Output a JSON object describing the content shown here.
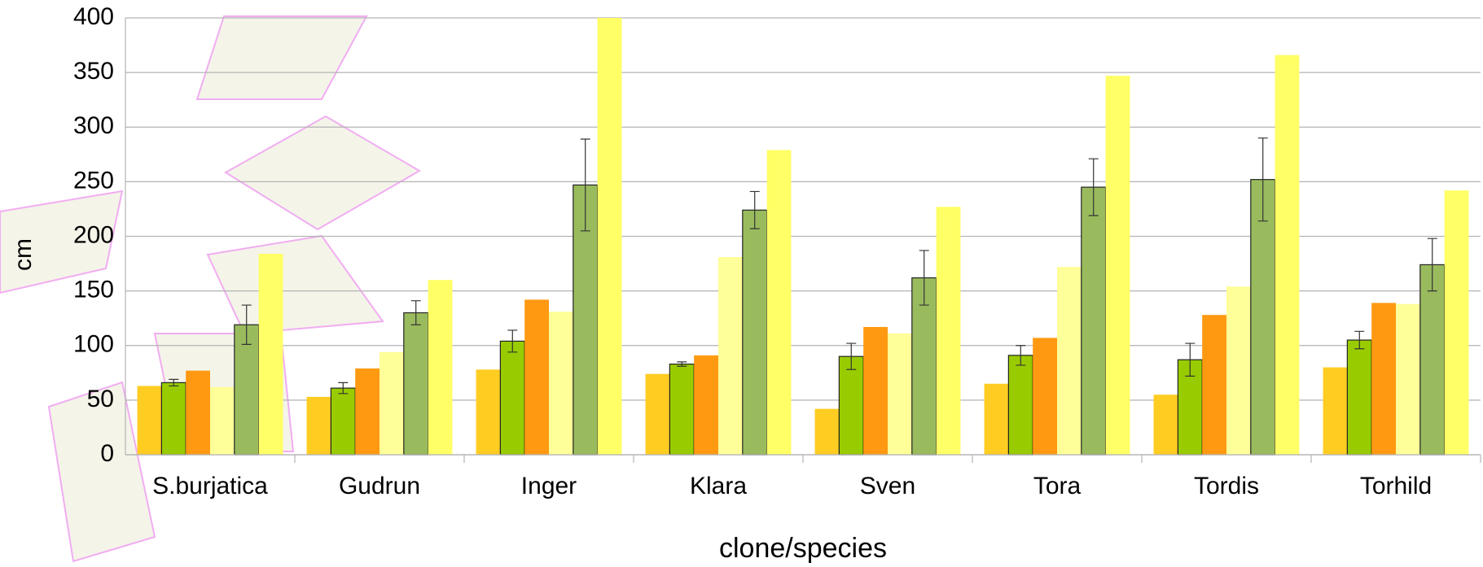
{
  "chart_data": {
    "type": "bar",
    "x_label": "clone/species",
    "y_label": "cm",
    "categories": [
      "S.burjatica",
      "Gudrun",
      "Inger",
      "Klara",
      "Sven",
      "Tora",
      "Tordis",
      "Torhild"
    ],
    "series": [
      {
        "color": "#ffcc22",
        "values": [
          63,
          53,
          78,
          74,
          42,
          65,
          55,
          80
        ]
      },
      {
        "color": "#99cc00",
        "values": [
          66,
          61,
          104,
          83,
          90,
          91,
          87,
          105
        ],
        "errors": [
          3,
          5,
          10,
          2,
          12,
          9,
          15,
          8
        ]
      },
      {
        "color": "#ff9911",
        "values": [
          77,
          79,
          142,
          91,
          117,
          107,
          128,
          139
        ]
      },
      {
        "color": "#ffff99",
        "values": [
          62,
          94,
          131,
          181,
          111,
          172,
          154,
          138
        ]
      },
      {
        "color": "#99bb5e",
        "values": [
          119,
          130,
          247,
          224,
          162,
          245,
          252,
          174
        ],
        "errors": [
          18,
          11,
          42,
          17,
          25,
          26,
          38,
          24
        ]
      },
      {
        "color": "#ffff66",
        "values": [
          184,
          160,
          400,
          279,
          227,
          347,
          366,
          242
        ]
      }
    ],
    "ylim": [
      0,
      400
    ],
    "yticks": [
      0,
      50,
      100,
      150,
      200,
      250,
      300,
      350,
      400
    ],
    "grid": true
  }
}
